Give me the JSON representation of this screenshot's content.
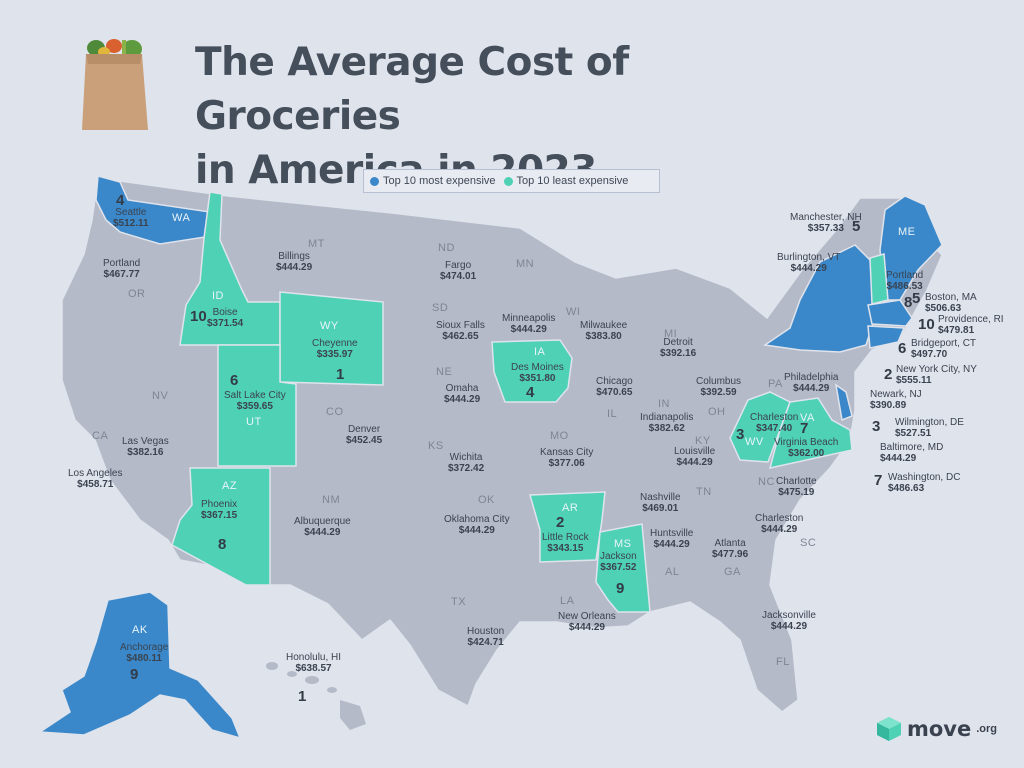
{
  "title": {
    "line1": "The Average Cost of Groceries",
    "line2": "in America in 2023"
  },
  "colors": {
    "background": "#dfe3ec",
    "land": "#b5bac8",
    "most_expensive": "#3a88c9",
    "least_expensive": "#4fd1b6",
    "border": "#dfe3ec"
  },
  "legend": {
    "most": {
      "label": "Top 10 most expensive",
      "color": "#3a88c9"
    },
    "least": {
      "label": "Top 10 least expensive",
      "color": "#4fd1b6"
    }
  },
  "state_abbrs": [
    "WA",
    "OR",
    "CA",
    "NV",
    "ID",
    "MT",
    "WY",
    "UT",
    "AZ",
    "CO",
    "NM",
    "ND",
    "SD",
    "NE",
    "KS",
    "OK",
    "TX",
    "MN",
    "IA",
    "MO",
    "AR",
    "LA",
    "WI",
    "IL",
    "MI",
    "IN",
    "OH",
    "KY",
    "TN",
    "MS",
    "AL",
    "GA",
    "FL",
    "SC",
    "NC",
    "VA",
    "WV",
    "PA",
    "ME",
    "AK"
  ],
  "cities": [
    {
      "name": "Seattle",
      "price": "$512.11",
      "rank": "4"
    },
    {
      "name": "Portland",
      "price": "$467.77"
    },
    {
      "name": "Billings",
      "price": "$444.29"
    },
    {
      "name": "Boise",
      "price": "$371.54",
      "rank": "10"
    },
    {
      "name": "Cheyenne",
      "price": "$335.97",
      "rank": "1"
    },
    {
      "name": "Salt Lake City",
      "price": "$359.65",
      "rank": "6"
    },
    {
      "name": "Las Vegas",
      "price": "$382.16"
    },
    {
      "name": "Los Angeles",
      "price": "$458.71"
    },
    {
      "name": "Phoenix",
      "price": "$367.15",
      "rank": "8"
    },
    {
      "name": "Denver",
      "price": "$452.45"
    },
    {
      "name": "Albuquerque",
      "price": "$444.29"
    },
    {
      "name": "Fargo",
      "price": "$474.01"
    },
    {
      "name": "Sioux Falls",
      "price": "$462.65"
    },
    {
      "name": "Omaha",
      "price": "$444.29"
    },
    {
      "name": "Wichita",
      "price": "$372.42"
    },
    {
      "name": "Oklahoma City",
      "price": "$444.29"
    },
    {
      "name": "Houston",
      "price": "$424.71"
    },
    {
      "name": "Minneapolis",
      "price": "$444.29"
    },
    {
      "name": "Des Moines",
      "price": "$351.80",
      "rank": "4"
    },
    {
      "name": "Kansas City",
      "price": "$377.06"
    },
    {
      "name": "Little Rock",
      "price": "$343.15",
      "rank": "2"
    },
    {
      "name": "Jackson",
      "price": "$367.52",
      "rank": "9"
    },
    {
      "name": "New Orleans",
      "price": "$444.29"
    },
    {
      "name": "Milwaukee",
      "price": "$383.80"
    },
    {
      "name": "Chicago",
      "price": "$470.65"
    },
    {
      "name": "Detroit",
      "price": "$392.16"
    },
    {
      "name": "Indianapolis",
      "price": "$382.62"
    },
    {
      "name": "Columbus",
      "price": "$392.59"
    },
    {
      "name": "Louisville",
      "price": "$444.29"
    },
    {
      "name": "Nashville",
      "price": "$469.01"
    },
    {
      "name": "Huntsville",
      "price": "$444.29"
    },
    {
      "name": "Atlanta",
      "price": "$477.96"
    },
    {
      "name": "Jacksonville",
      "price": "$444.29"
    },
    {
      "name": "Charleston",
      "price": "$444.29"
    },
    {
      "name": "Charlotte",
      "price": "$475.19"
    },
    {
      "name": "Charleston",
      "price": "$347.40",
      "rank": "3"
    },
    {
      "name": "Virginia Beach",
      "price": "$362.00",
      "rank": "7"
    },
    {
      "name": "Philadelphia",
      "price": "$444.29"
    },
    {
      "name": "Portland",
      "price": "$486.53",
      "rank": "8"
    },
    {
      "name": "Anchorage",
      "price": "$480.11",
      "rank": "9"
    },
    {
      "name": "Honolulu, HI",
      "price": "$638.57",
      "rank": "1"
    },
    {
      "name": "Manchester, NH",
      "price": "$357.33",
      "rank": "5"
    },
    {
      "name": "Burlington, VT",
      "price": "$444.29"
    },
    {
      "name": "Boston, MA",
      "price": "$506.63",
      "rank": "5"
    },
    {
      "name": "Providence, RI",
      "price": "$479.81",
      "rank": "10"
    },
    {
      "name": "Bridgeport, CT",
      "price": "$497.70",
      "rank": "6"
    },
    {
      "name": "New York City, NY",
      "price": "$555.11",
      "rank": "2"
    },
    {
      "name": "Newark, NJ",
      "price": "$390.89"
    },
    {
      "name": "Wilmington, DE",
      "price": "$527.51",
      "rank": "3"
    },
    {
      "name": "Baltimore, MD",
      "price": "$444.29"
    },
    {
      "name": "Washington, DC",
      "price": "$486.63",
      "rank": "7"
    }
  ],
  "brand": {
    "name": "move",
    "tld": ".org",
    "icon": "move-logo-cube-icon"
  }
}
